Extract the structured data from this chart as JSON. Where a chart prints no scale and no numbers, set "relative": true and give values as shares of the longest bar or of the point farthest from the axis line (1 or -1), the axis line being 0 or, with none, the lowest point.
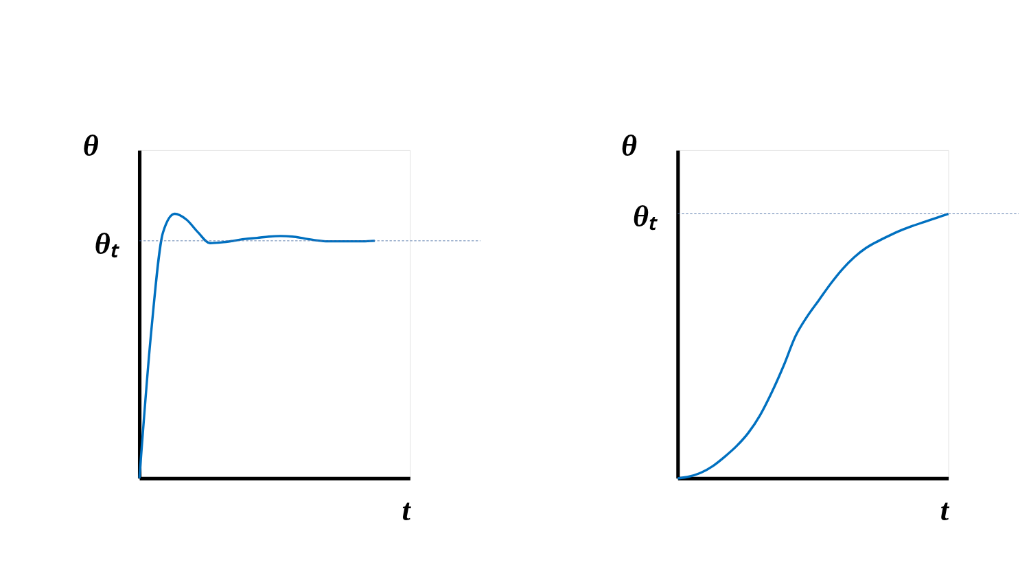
{
  "chart_data": [
    {
      "type": "line",
      "relative": true,
      "xlabel": "t",
      "ylabel": "θ",
      "line_style": "solid",
      "categories": [
        null,
        null,
        null,
        null,
        null,
        null,
        null,
        null,
        null,
        null,
        null,
        null,
        null,
        null,
        null,
        null,
        null,
        null,
        null,
        null,
        null,
        null,
        null,
        null
      ],
      "series": [
        {
          "color": "#0070c0",
          "values": [
            0,
            0.553,
            0.929,
            1.0,
            0.978,
            0.929,
            0.889,
            0.892,
            0.898,
            0.905,
            0.909,
            0.914,
            0.916,
            0.914,
            0.907,
            0.9,
            0.896,
            0.896,
            0.896,
            0.896,
            0.898,
            null,
            null,
            null
          ]
        }
      ],
      "ref_lines": [
        {
          "axis": "y",
          "value": 0.898,
          "label": "θₜ",
          "color": "#4a6fa5",
          "line_style": "dashed"
        }
      ]
    },
    {
      "type": "line",
      "relative": true,
      "xlabel": "t",
      "ylabel": "θ",
      "line_style": "solid",
      "categories": [
        null,
        null,
        null,
        null,
        null,
        null,
        null,
        null,
        null,
        null,
        null,
        null,
        null,
        null,
        null,
        null,
        null,
        null,
        null,
        null,
        null,
        null,
        null,
        null
      ],
      "series": [
        {
          "color": "#0070c0",
          "values": [
            0,
            0.007,
            0.022,
            0.047,
            0.082,
            0.122,
            0.172,
            0.239,
            0.326,
            0.426,
            0.537,
            0.612,
            0.674,
            0.736,
            0.791,
            0.836,
            0.871,
            0.896,
            0.918,
            0.938,
            0.955,
            0.97,
            0.985,
            1.0
          ]
        }
      ],
      "ref_lines": [
        {
          "axis": "y",
          "value": 1.0,
          "label": "θₜ",
          "color": "#4a6fa5",
          "line_style": "dashed"
        }
      ]
    }
  ]
}
